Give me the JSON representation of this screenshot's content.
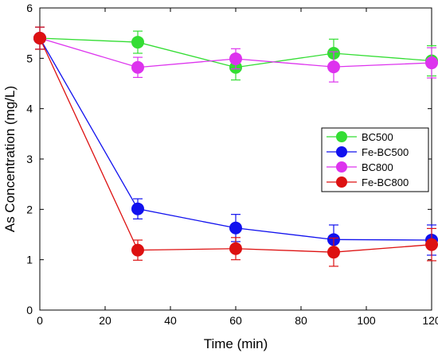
{
  "chart_data": {
    "type": "line",
    "xlabel": "Time (min)",
    "ylabel": "As Concentration (mg/L)",
    "xlim": [
      0,
      120
    ],
    "ylim": [
      0,
      6
    ],
    "xticks": [
      0,
      20,
      40,
      60,
      80,
      100,
      120
    ],
    "yticks": [
      0,
      1,
      2,
      3,
      4,
      5,
      6
    ],
    "grid": false,
    "legend_position": "right-middle",
    "x": [
      0,
      30,
      60,
      90,
      120
    ],
    "series": [
      {
        "name": "BC500",
        "color": "#33dd33",
        "values": [
          5.4,
          5.32,
          4.82,
          5.1,
          4.95
        ],
        "errors": [
          0.22,
          0.22,
          0.25,
          0.28,
          0.3
        ]
      },
      {
        "name": "Fe-BC500",
        "color": "#1111ee",
        "values": [
          5.4,
          2.01,
          1.63,
          1.4,
          1.39
        ],
        "errors": [
          0.22,
          0.2,
          0.27,
          0.29,
          0.3
        ]
      },
      {
        "name": "BC800",
        "color": "#dd33ee",
        "values": [
          5.4,
          4.82,
          4.99,
          4.83,
          4.91
        ],
        "errors": [
          0.22,
          0.2,
          0.2,
          0.3,
          0.3
        ]
      },
      {
        "name": "Fe-BC800",
        "color": "#dd1111",
        "values": [
          5.4,
          1.19,
          1.22,
          1.15,
          1.3
        ],
        "errors": [
          0.22,
          0.2,
          0.22,
          0.28,
          0.32
        ]
      }
    ]
  }
}
